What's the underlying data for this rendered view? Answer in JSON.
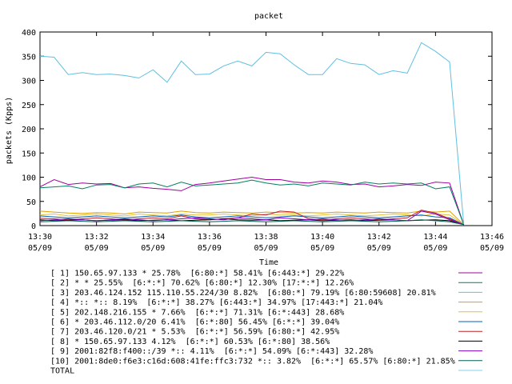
{
  "chart_data": {
    "type": "line",
    "title": "packet",
    "xlabel": "Time",
    "ylabel": "packets (Kpps)",
    "ylim": [
      0,
      400
    ],
    "yticks": [
      "0",
      "50",
      "100",
      "150",
      "200",
      "250",
      "300",
      "350",
      "400"
    ],
    "xticks": [
      {
        "time": "13:30",
        "date": "05/09"
      },
      {
        "time": "13:32",
        "date": "05/09"
      },
      {
        "time": "13:34",
        "date": "05/09"
      },
      {
        "time": "13:36",
        "date": "05/09"
      },
      {
        "time": "13:38",
        "date": "05/09"
      },
      {
        "time": "13:40",
        "date": "05/09"
      },
      {
        "time": "13:42",
        "date": "05/09"
      },
      {
        "time": "13:44",
        "date": "05/09"
      },
      {
        "time": "13:46",
        "date": "05/09"
      }
    ],
    "xlim_minutes": [
      0,
      16
    ],
    "x_minutes": [
      0,
      0.5,
      1,
      1.5,
      2,
      2.5,
      3,
      3.5,
      4,
      4.5,
      5,
      5.5,
      6,
      6.5,
      7,
      7.5,
      8,
      8.5,
      9,
      9.5,
      10,
      10.5,
      11,
      11.5,
      12,
      12.5,
      13,
      13.5,
      14,
      14.5,
      15
    ],
    "grid": false,
    "legend_position": "below",
    "series": [
      {
        "name": "[ 1] 150.65.97.133 * 25.78%  [6:80:*] 58.41% [6:443:*] 29.22%",
        "color": "#a000a0",
        "values": [
          80,
          95,
          85,
          88,
          86,
          87,
          78,
          80,
          77,
          75,
          72,
          85,
          88,
          92,
          96,
          100,
          95,
          95,
          90,
          88,
          92,
          90,
          85,
          86,
          80,
          82,
          85,
          83,
          90,
          88,
          2
        ]
      },
      {
        "name": "[ 2] * * 25.55%  [6:*:*] 70.62% [6:80:*] 12.30% [17:*:*] 12.26%",
        "color": "#008060",
        "values": [
          78,
          80,
          82,
          76,
          84,
          85,
          78,
          86,
          88,
          80,
          90,
          82,
          84,
          86,
          88,
          94,
          88,
          84,
          86,
          82,
          88,
          86,
          84,
          90,
          86,
          88,
          86,
          88,
          76,
          80,
          2
        ]
      },
      {
        "name": "[ 3] 203.46.124.152 115.110.55.224/30 8.82%  [6:80:*] 79.19% [6:80:59608] 20.81%",
        "color": "#60c0e0",
        "values": [
          350,
          348,
          312,
          316,
          312,
          313,
          310,
          305,
          322,
          296,
          340,
          312,
          313,
          330,
          340,
          330,
          358,
          355,
          332,
          312,
          312,
          345,
          335,
          332,
          312,
          320,
          315,
          378,
          360,
          338,
          2
        ]
      },
      {
        "name": "[ 4] *:: *:: 8.19%  [6:*:*] 38.27% [6:443:*] 34.97% [17:443:*] 21.04%",
        "color": "#e0a000",
        "values": [
          30,
          28,
          26,
          25,
          27,
          26,
          24,
          28,
          27,
          26,
          30,
          27,
          26,
          28,
          27,
          26,
          28,
          27,
          26,
          27,
          26,
          28,
          27,
          26,
          28,
          27,
          26,
          30,
          28,
          30,
          2
        ]
      },
      {
        "name": "[ 5] 202.148.216.155 * 7.66%  [6:*:*] 71.31% [6:*:443] 28.68%",
        "color": "#e0c040",
        "values": [
          22,
          24,
          20,
          22,
          24,
          22,
          20,
          24,
          22,
          20,
          24,
          22,
          22,
          24,
          22,
          20,
          24,
          22,
          22,
          20,
          22,
          24,
          22,
          20,
          22,
          24,
          22,
          20,
          24,
          22,
          2
        ]
      },
      {
        "name": "[ 6] * 203.46.112.0/20 6.41%  [6:*:80] 56.45% [6:*:*] 39.04%",
        "color": "#0060c0",
        "values": [
          20,
          18,
          16,
          18,
          20,
          18,
          16,
          18,
          20,
          18,
          22,
          18,
          16,
          18,
          20,
          18,
          16,
          18,
          20,
          18,
          16,
          18,
          20,
          18,
          16,
          18,
          20,
          22,
          18,
          16,
          2
        ]
      },
      {
        "name": "[ 7] 203.46.120.0/21 * 5.53%  [6:*:*] 56.59% [6:80:*] 42.95%",
        "color": "#c02020",
        "values": [
          15,
          14,
          12,
          14,
          16,
          14,
          12,
          14,
          16,
          14,
          20,
          14,
          12,
          14,
          16,
          24,
          22,
          30,
          28,
          14,
          12,
          14,
          16,
          14,
          12,
          14,
          16,
          32,
          26,
          14,
          2
        ]
      },
      {
        "name": "[ 8] * 150.65.97.133 4.12%  [6:*:*] 60.53% [6:*:80] 38.56%",
        "color": "#000000",
        "values": [
          12,
          10,
          11,
          12,
          10,
          11,
          12,
          10,
          11,
          12,
          10,
          11,
          12,
          14,
          12,
          11,
          12,
          10,
          11,
          12,
          10,
          11,
          12,
          10,
          11,
          12,
          10,
          11,
          12,
          10,
          2
        ]
      },
      {
        "name": "[ 9] 2001:82f8:f400::/39 *:: 4.11%  [6:*:*] 54.09% [6:*:443] 32.28%",
        "color": "#8000c0",
        "values": [
          10,
          12,
          14,
          12,
          10,
          12,
          14,
          12,
          10,
          12,
          14,
          16,
          14,
          12,
          16,
          14,
          12,
          16,
          14,
          12,
          14,
          12,
          10,
          12,
          14,
          12,
          10,
          30,
          24,
          12,
          2
        ]
      },
      {
        "name": "[10] 2001:8de0:f6e3:c16d:608:41fe:ffc3:732 *:: 3.82%  [6:*:*] 65.57% [6:80:*] 21.85%",
        "color": "#006050",
        "values": [
          8,
          9,
          10,
          9,
          8,
          9,
          10,
          9,
          8,
          9,
          10,
          9,
          8,
          9,
          10,
          9,
          8,
          9,
          10,
          9,
          8,
          9,
          10,
          9,
          8,
          9,
          10,
          12,
          10,
          8,
          2
        ]
      },
      {
        "name": "TOTAL",
        "color": "#80d0f0",
        "values": null
      }
    ]
  }
}
